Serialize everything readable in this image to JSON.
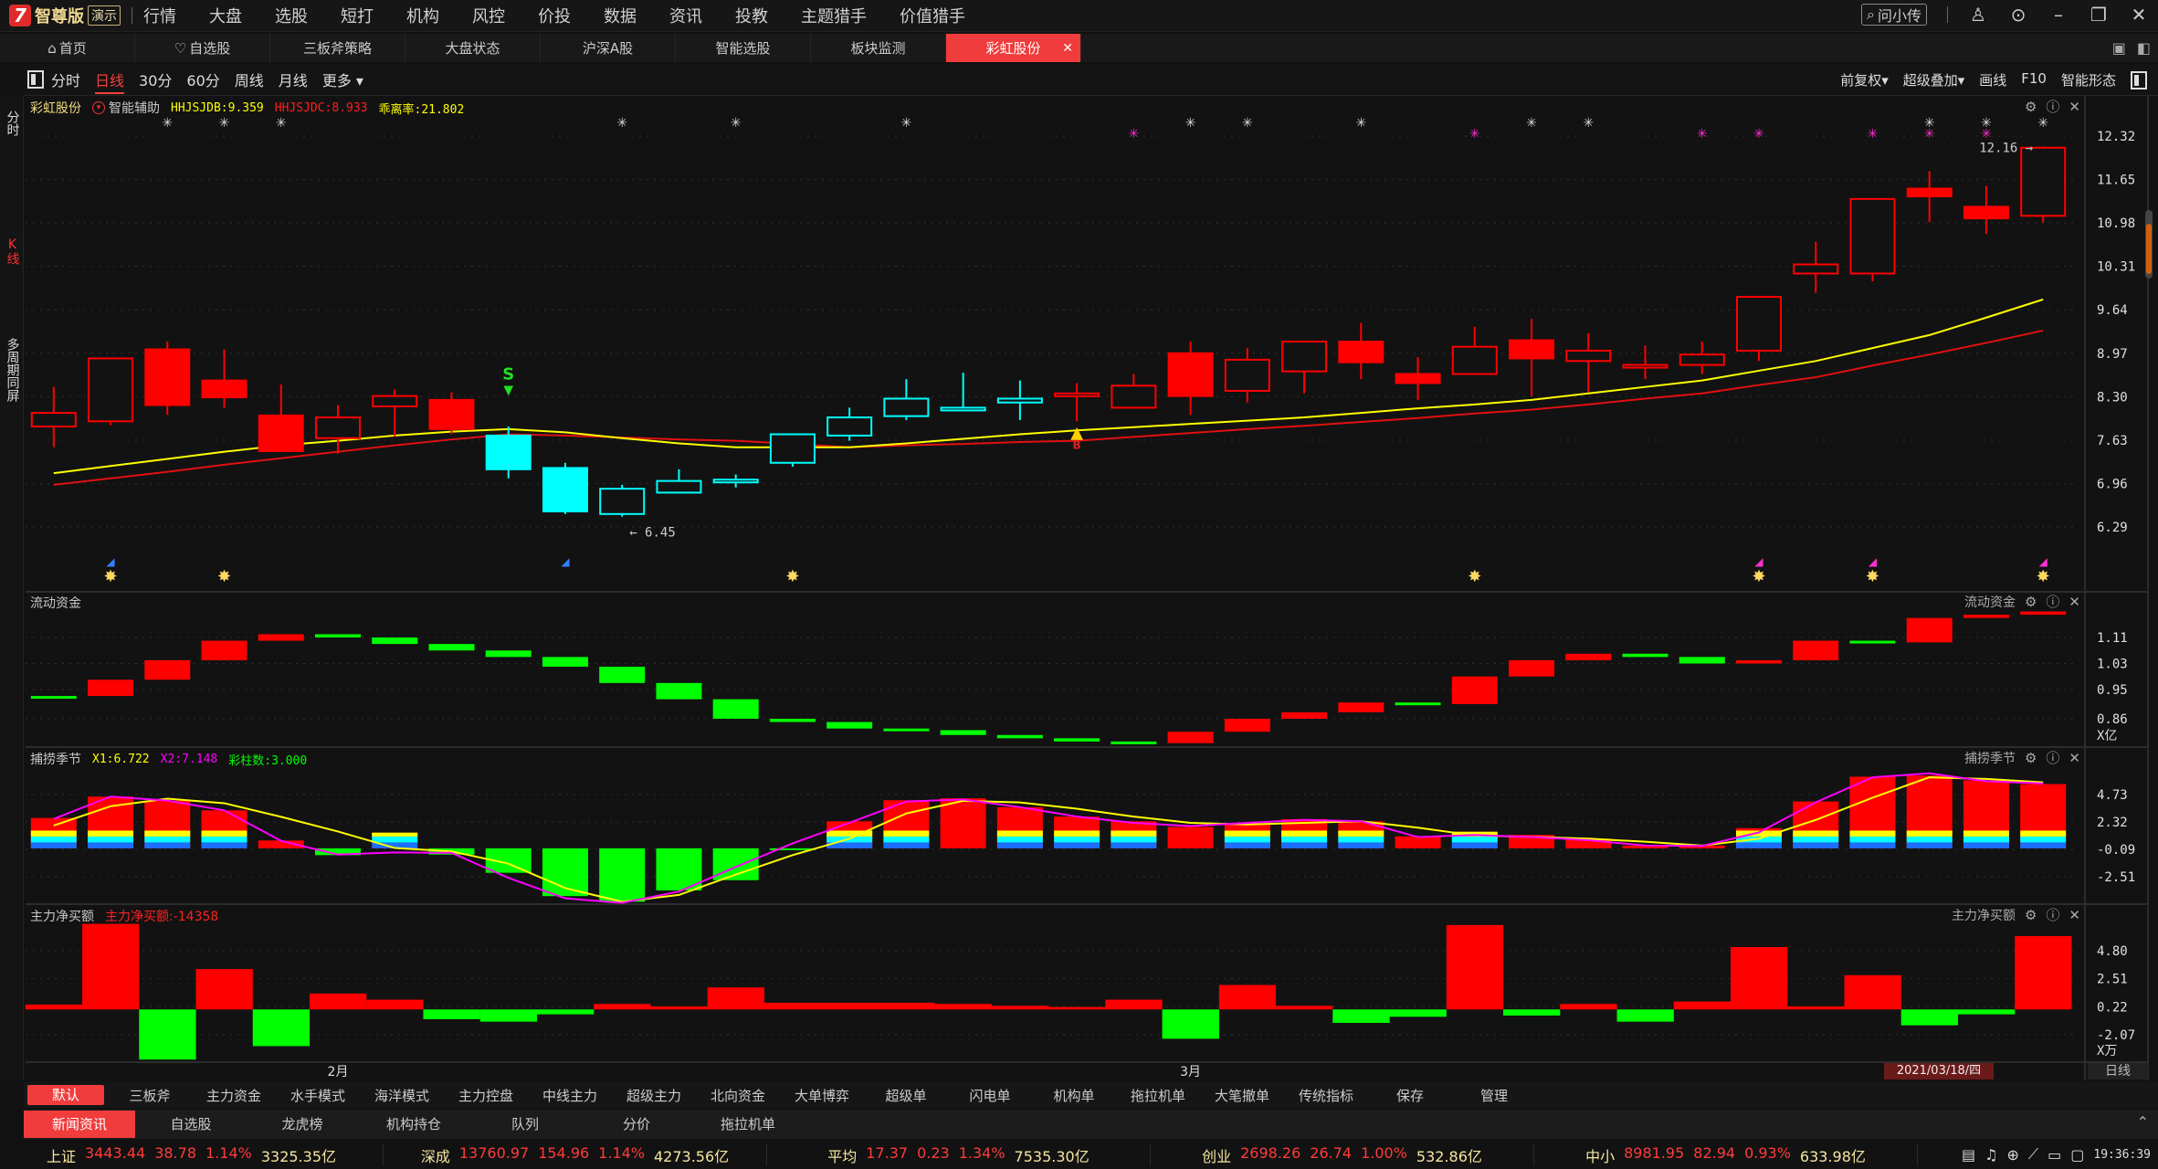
{
  "app": {
    "brand": "智尊版",
    "demo_badge": "演示",
    "logo": "7",
    "menu": [
      "行情",
      "大盘",
      "选股",
      "短打",
      "机构",
      "风控",
      "价投",
      "数据",
      "资讯",
      "投教",
      "主题猎手",
      "价值猎手"
    ],
    "ask_label": "问小传"
  },
  "tabs": [
    {
      "label": "首页",
      "icon": "home-icon"
    },
    {
      "label": "自选股",
      "icon": "heart-icon"
    },
    {
      "label": "三板斧策略"
    },
    {
      "label": "大盘状态"
    },
    {
      "label": "沪深A股"
    },
    {
      "label": "智能选股"
    },
    {
      "label": "板块监测"
    },
    {
      "label": "彩虹股份",
      "active": true
    }
  ],
  "toolbar": {
    "periods": [
      "分时",
      "日线",
      "30分",
      "60分",
      "周线",
      "月线",
      "更多 ▾"
    ],
    "active_period": "日线",
    "right": [
      "前复权▾",
      "超级叠加▾",
      "画线",
      "F10",
      "智能形态"
    ]
  },
  "left_tabs": [
    "分时",
    "K线",
    "多周期同屏"
  ],
  "main_panel": {
    "stock": "彩虹股份",
    "assist": "智能辅助",
    "ind1": "HHJSJDB:9.359",
    "ind2": "HHJSJDC:8.933",
    "ind3": "乖离率:21.802"
  },
  "panels": [
    {
      "title": "流动资金",
      "unit": "X亿"
    },
    {
      "title": "捕捞季节",
      "x1": "X1:6.722",
      "x2": "X2:7.148",
      "count": "彩柱数:3.000"
    },
    {
      "title": "主力净买额",
      "value": "主力净买额:-14358",
      "unit": "X万"
    }
  ],
  "chart_data": {
    "type": "candlestick",
    "price_ticks": [
      "12.32",
      "11.65",
      "10.98",
      "10.31",
      "9.64",
      "8.97",
      "8.30",
      "7.63",
      "6.96",
      "6.29"
    ],
    "high_label": "12.16",
    "low_label": "6.45",
    "candles": [
      {
        "o": 7.84,
        "h": 8.45,
        "l": 7.52,
        "c": 8.05,
        "color": "red",
        "filled": false
      },
      {
        "o": 7.92,
        "h": 8.89,
        "l": 7.86,
        "c": 8.89,
        "color": "red",
        "filled": false
      },
      {
        "o": 9.03,
        "h": 9.15,
        "l": 8.02,
        "c": 8.17,
        "color": "red",
        "filled": true
      },
      {
        "o": 8.55,
        "h": 9.03,
        "l": 8.13,
        "c": 8.29,
        "color": "red",
        "filled": true
      },
      {
        "o": 8.01,
        "h": 8.49,
        "l": 7.46,
        "c": 7.46,
        "color": "red",
        "filled": true
      },
      {
        "o": 7.66,
        "h": 8.17,
        "l": 7.42,
        "c": 7.98,
        "color": "red",
        "filled": false
      },
      {
        "o": 8.15,
        "h": 8.41,
        "l": 7.68,
        "c": 8.31,
        "color": "red",
        "filled": false
      },
      {
        "o": 8.25,
        "h": 8.37,
        "l": 7.72,
        "c": 7.8,
        "color": "red",
        "filled": true
      },
      {
        "o": 7.7,
        "h": 7.84,
        "l": 7.04,
        "c": 7.18,
        "color": "cyan",
        "filled": true
      },
      {
        "o": 7.2,
        "h": 7.28,
        "l": 6.49,
        "c": 6.53,
        "color": "cyan",
        "filled": true
      },
      {
        "o": 6.49,
        "h": 6.94,
        "l": 6.45,
        "c": 6.88,
        "color": "cyan",
        "filled": false
      },
      {
        "o": 6.82,
        "h": 7.18,
        "l": 6.82,
        "c": 7.0,
        "color": "cyan",
        "filled": false
      },
      {
        "o": 7.02,
        "h": 7.1,
        "l": 6.9,
        "c": 7.02,
        "color": "cyan",
        "filled": false
      },
      {
        "o": 7.28,
        "h": 7.72,
        "l": 7.22,
        "c": 7.72,
        "color": "cyan",
        "filled": false
      },
      {
        "o": 7.7,
        "h": 8.13,
        "l": 7.62,
        "c": 7.98,
        "color": "cyan",
        "filled": false
      },
      {
        "o": 8.0,
        "h": 8.57,
        "l": 7.94,
        "c": 8.27,
        "color": "cyan",
        "filled": false
      },
      {
        "o": 8.13,
        "h": 8.67,
        "l": 8.13,
        "c": 8.13,
        "color": "cyan",
        "filled": false
      },
      {
        "o": 8.21,
        "h": 8.55,
        "l": 7.94,
        "c": 8.27,
        "color": "cyan",
        "filled": false
      },
      {
        "o": 8.35,
        "h": 8.51,
        "l": 7.92,
        "c": 8.35,
        "color": "red",
        "filled": false
      },
      {
        "o": 8.13,
        "h": 8.65,
        "l": 8.13,
        "c": 8.47,
        "color": "red",
        "filled": false
      },
      {
        "o": 8.97,
        "h": 9.15,
        "l": 8.02,
        "c": 8.31,
        "color": "red",
        "filled": true
      },
      {
        "o": 8.39,
        "h": 9.05,
        "l": 8.21,
        "c": 8.87,
        "color": "red",
        "filled": false
      },
      {
        "o": 8.69,
        "h": 9.15,
        "l": 8.35,
        "c": 9.15,
        "color": "red",
        "filled": false
      },
      {
        "o": 9.15,
        "h": 9.44,
        "l": 8.57,
        "c": 8.83,
        "color": "red",
        "filled": true
      },
      {
        "o": 8.65,
        "h": 8.91,
        "l": 8.25,
        "c": 8.51,
        "color": "red",
        "filled": true
      },
      {
        "o": 8.65,
        "h": 9.38,
        "l": 8.65,
        "c": 9.07,
        "color": "red",
        "filled": false
      },
      {
        "o": 9.17,
        "h": 9.5,
        "l": 8.31,
        "c": 8.89,
        "color": "red",
        "filled": true
      },
      {
        "o": 8.85,
        "h": 9.28,
        "l": 8.37,
        "c": 9.01,
        "color": "red",
        "filled": false
      },
      {
        "o": 8.79,
        "h": 9.09,
        "l": 8.57,
        "c": 8.79,
        "color": "red",
        "filled": false
      },
      {
        "o": 8.79,
        "h": 9.15,
        "l": 8.65,
        "c": 8.95,
        "color": "red",
        "filled": false
      },
      {
        "o": 9.01,
        "h": 9.84,
        "l": 8.85,
        "c": 9.84,
        "color": "red",
        "filled": false
      },
      {
        "o": 10.2,
        "h": 10.69,
        "l": 9.9,
        "c": 10.34,
        "color": "red",
        "filled": false
      },
      {
        "o": 10.2,
        "h": 11.35,
        "l": 10.08,
        "c": 11.35,
        "color": "red",
        "filled": false
      },
      {
        "o": 11.51,
        "h": 11.78,
        "l": 10.99,
        "c": 11.39,
        "color": "red",
        "filled": true
      },
      {
        "o": 11.23,
        "h": 11.55,
        "l": 10.81,
        "c": 11.05,
        "color": "red",
        "filled": true
      },
      {
        "o": 11.09,
        "h": 12.16,
        "l": 10.99,
        "c": 12.14,
        "color": "red",
        "filled": false
      }
    ],
    "ma_yellow": [
      7.12,
      7.23,
      7.34,
      7.45,
      7.55,
      7.62,
      7.7,
      7.76,
      7.8,
      7.75,
      7.66,
      7.58,
      7.52,
      7.52,
      7.52,
      7.58,
      7.65,
      7.72,
      7.78,
      7.83,
      7.88,
      7.93,
      7.98,
      8.05,
      8.12,
      8.18,
      8.25,
      8.35,
      8.45,
      8.55,
      8.7,
      8.85,
      9.05,
      9.25,
      9.52,
      9.8
    ],
    "ma_red": [
      6.94,
      7.04,
      7.14,
      7.25,
      7.35,
      7.45,
      7.55,
      7.64,
      7.72,
      7.7,
      7.67,
      7.64,
      7.62,
      7.57,
      7.52,
      7.55,
      7.57,
      7.6,
      7.62,
      7.68,
      7.74,
      7.8,
      7.85,
      7.91,
      7.97,
      8.04,
      8.1,
      8.18,
      8.27,
      8.35,
      8.48,
      8.6,
      8.78,
      8.95,
      9.13,
      9.32
    ],
    "markers": {
      "gray_star": [
        2,
        3,
        4,
        10,
        12,
        15,
        20,
        21,
        23,
        26,
        27,
        33,
        34,
        35
      ],
      "magenta_star": [
        19,
        25,
        29,
        30,
        32,
        33,
        34
      ],
      "yellow_star": [
        1,
        3,
        13,
        25,
        30,
        32,
        35
      ],
      "blue_flag": [
        1,
        9
      ],
      "magenta_flag": [
        30,
        32,
        35
      ],
      "sell": {
        "at": 8,
        "label": "S"
      },
      "buy": {
        "at": 18,
        "label": "B"
      }
    },
    "flow": {
      "ticks": [
        "1.11",
        "1.03",
        "0.95",
        "0.86"
      ],
      "values": [
        0.93,
        0.98,
        1.04,
        1.1,
        1.12,
        1.11,
        1.09,
        1.07,
        1.05,
        1.02,
        0.97,
        0.92,
        0.86,
        0.85,
        0.83,
        0.825,
        0.81,
        0.8,
        0.79,
        0.785,
        0.82,
        0.86,
        0.88,
        0.91,
        0.905,
        0.99,
        1.04,
        1.06,
        1.05,
        1.03,
        1.04,
        1.1,
        1.095,
        1.17,
        1.18,
        1.19
      ]
    },
    "season": {
      "ticks": [
        "4.73",
        "2.32",
        "-0.09",
        "-2.51"
      ],
      "bars": [
        2.67,
        4.55,
        4.2,
        3.34,
        0.69,
        -0.6,
        1.38,
        -0.55,
        -2.15,
        -4.2,
        -4.7,
        -3.7,
        -2.8,
        -0.05,
        2.38,
        4.23,
        4.4,
        3.62,
        2.79,
        2.38,
        1.88,
        2.18,
        2.57,
        2.38,
        1.05,
        1.46,
        1.18,
        0.85,
        0.24,
        0.24,
        1.77,
        4.12,
        6.3,
        6.4,
        5.98,
        5.65
      ],
      "rainbow": [
        1,
        1,
        1,
        1,
        0,
        0,
        1,
        0,
        0,
        0,
        0,
        0,
        0,
        0,
        1,
        1,
        0,
        1,
        1,
        1,
        0,
        1,
        1,
        1,
        0,
        1,
        0,
        0,
        0,
        0,
        1,
        1,
        1,
        1,
        1,
        1
      ],
      "x1": [
        2.0,
        3.7,
        4.37,
        3.97,
        2.77,
        1.48,
        0.03,
        -0.27,
        -1.35,
        -3.5,
        -4.7,
        -4.1,
        -2.3,
        -0.6,
        0.85,
        3.07,
        4.18,
        4.04,
        3.48,
        2.79,
        2.24,
        2.1,
        2.24,
        2.38,
        1.82,
        1.13,
        1.0,
        0.85,
        0.58,
        0.24,
        0.85,
        2.5,
        4.45,
        6.25,
        6.1,
        5.8
      ],
      "x2": [
        2.59,
        4.55,
        4.2,
        3.34,
        0.66,
        -0.55,
        -0.36,
        -0.4,
        -2.6,
        -4.4,
        -4.8,
        -3.8,
        -1.64,
        0.44,
        2.24,
        4.12,
        4.3,
        3.62,
        2.79,
        2.24,
        1.96,
        2.24,
        2.5,
        2.38,
        0.99,
        1.18,
        0.99,
        0.71,
        0.24,
        0.21,
        1.4,
        4.04,
        6.25,
        6.6,
        5.9,
        5.7
      ]
    },
    "netbuy": {
      "ticks": [
        "4.80",
        "2.51",
        "0.22",
        "-2.07"
      ],
      "values": [
        0.4,
        7.0,
        -4.1,
        3.3,
        -3.0,
        1.3,
        0.8,
        -0.8,
        -1.0,
        -0.4,
        0.45,
        0.25,
        1.8,
        0.55,
        0.55,
        0.55,
        0.45,
        0.3,
        0.2,
        0.8,
        -2.4,
        2.0,
        0.3,
        -1.1,
        -0.6,
        6.9,
        -0.5,
        0.45,
        -1.0,
        0.65,
        5.1,
        0.25,
        2.8,
        -1.3,
        -0.4,
        6.0
      ]
    },
    "x_labels": [
      {
        "label": "2月",
        "at": 5
      },
      {
        "label": "3月",
        "at": 20
      }
    ],
    "cursor_date": "2021/03/18/四",
    "period_label": "日线",
    "colors": {
      "up": "#ff0000",
      "down": "#00ffff",
      "ma1": "#ffff00",
      "ma2": "#e01010",
      "green": "#00ff00",
      "magenta": "#ff00ff"
    }
  },
  "indicator_bar": [
    "默认",
    "三板斧",
    "主力资金",
    "水手模式",
    "海洋模式",
    "主力控盘",
    "中线主力",
    "超级主力",
    "北向资金",
    "大单博弈",
    "超级单",
    "闪电单",
    "机构单",
    "拖拉机单",
    "大笔撤单",
    "传统指标",
    "保存",
    "管理"
  ],
  "bottom_tabs": [
    "新闻资讯",
    "自选股",
    "龙虎榜",
    "机构持仓",
    "队列",
    "分价",
    "拖拉机单"
  ],
  "status": {
    "indices": [
      {
        "name": "上证",
        "price": "3443.44",
        "change": "38.78",
        "pct": "1.14%",
        "volume": "3325.35亿"
      },
      {
        "name": "深成",
        "price": "13760.97",
        "change": "154.96",
        "pct": "1.14%",
        "volume": "4273.56亿"
      },
      {
        "name": "平均",
        "price": "17.37",
        "change": "0.23",
        "pct": "1.34%",
        "volume": "7535.30亿"
      },
      {
        "name": "创业",
        "price": "2698.26",
        "change": "26.74",
        "pct": "1.00%",
        "volume": "532.86亿"
      },
      {
        "name": "中小",
        "price": "8981.95",
        "change": "82.94",
        "pct": "0.93%",
        "volume": "633.98亿"
      }
    ],
    "time": "19:36:39"
  }
}
